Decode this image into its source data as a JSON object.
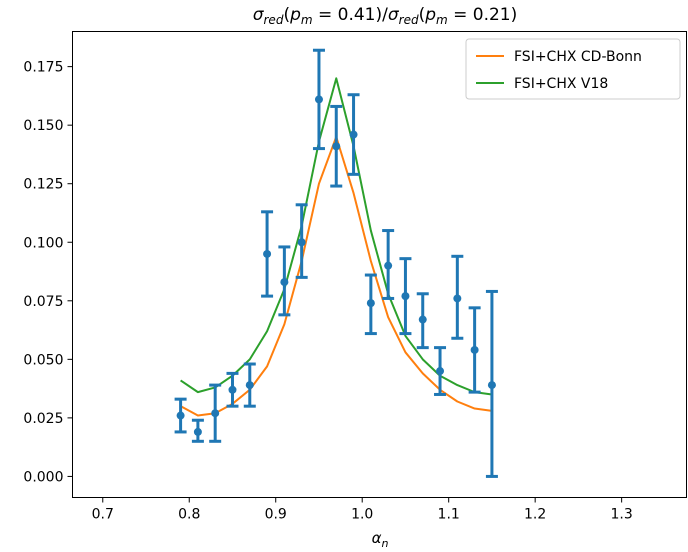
{
  "chart_data": {
    "type": "line",
    "title": "σred(pm = 0.41)/σred(pm = 0.21)",
    "title_parts": {
      "num_sigma": "σ",
      "num_sub": "red",
      "num_arg_open": "(",
      "num_var": "p",
      "num_var_sub": "m",
      "num_val": " = 0.41)",
      "slash": "/",
      "den_sigma": "σ",
      "den_sub": "red",
      "den_arg_open": "(",
      "den_var": "p",
      "den_var_sub": "m",
      "den_val": " = 0.21)"
    },
    "xlabel": "αn",
    "xlabel_parts": {
      "main": "α",
      "sub": "n"
    },
    "ylabel": "",
    "xlim": [
      0.665,
      1.375
    ],
    "ylim": [
      -0.009,
      0.19
    ],
    "xticks": [
      0.7,
      0.8,
      0.9,
      1.0,
      1.1,
      1.2,
      1.3
    ],
    "xtick_labels": [
      "0.7",
      "0.8",
      "0.9",
      "1.0",
      "1.1",
      "1.2",
      "1.3"
    ],
    "yticks": [
      0.0,
      0.025,
      0.05,
      0.075,
      0.1,
      0.125,
      0.15,
      0.175
    ],
    "ytick_labels": [
      "0.000",
      "0.025",
      "0.050",
      "0.075",
      "0.100",
      "0.125",
      "0.150",
      "0.175"
    ],
    "grid": false,
    "legend_position": "top-right",
    "series": [
      {
        "name": "FSI+CHX CD-Bonn",
        "kind": "line",
        "color": "#ff7f0e",
        "x": [
          0.79,
          0.81,
          0.83,
          0.85,
          0.87,
          0.89,
          0.91,
          0.93,
          0.95,
          0.97,
          0.99,
          1.01,
          1.03,
          1.05,
          1.07,
          1.09,
          1.11,
          1.13,
          1.15
        ],
        "y": [
          0.03,
          0.026,
          0.027,
          0.031,
          0.037,
          0.047,
          0.065,
          0.092,
          0.125,
          0.145,
          0.121,
          0.092,
          0.068,
          0.053,
          0.044,
          0.037,
          0.032,
          0.029,
          0.028
        ]
      },
      {
        "name": "FSI+CHX V18",
        "kind": "line",
        "color": "#2ca02c",
        "x": [
          0.79,
          0.81,
          0.83,
          0.85,
          0.87,
          0.89,
          0.91,
          0.93,
          0.95,
          0.97,
          0.99,
          1.01,
          1.03,
          1.05,
          1.07,
          1.09,
          1.11,
          1.13,
          1.15
        ],
        "y": [
          0.041,
          0.036,
          0.038,
          0.043,
          0.05,
          0.062,
          0.08,
          0.107,
          0.143,
          0.17,
          0.141,
          0.105,
          0.078,
          0.06,
          0.05,
          0.043,
          0.039,
          0.036,
          0.035
        ]
      },
      {
        "name": "",
        "kind": "errorbar",
        "color": "#1f77b4",
        "x": [
          0.79,
          0.81,
          0.83,
          0.85,
          0.87,
          0.89,
          0.91,
          0.93,
          0.95,
          0.97,
          0.99,
          1.01,
          1.03,
          1.05,
          1.07,
          1.09,
          1.11,
          1.13,
          1.15
        ],
        "y": [
          0.026,
          0.019,
          0.027,
          0.037,
          0.039,
          0.095,
          0.083,
          0.1,
          0.161,
          0.141,
          0.146,
          0.074,
          0.09,
          0.077,
          0.067,
          0.045,
          0.076,
          0.054,
          0.039
        ],
        "y_low": [
          0.019,
          0.015,
          0.015,
          0.03,
          0.03,
          0.077,
          0.069,
          0.085,
          0.14,
          0.124,
          0.129,
          0.061,
          0.076,
          0.061,
          0.055,
          0.035,
          0.059,
          0.036,
          0.0
        ],
        "y_high": [
          0.033,
          0.024,
          0.039,
          0.044,
          0.048,
          0.113,
          0.098,
          0.116,
          0.182,
          0.158,
          0.163,
          0.086,
          0.105,
          0.093,
          0.078,
          0.055,
          0.094,
          0.072,
          0.079
        ]
      }
    ]
  }
}
